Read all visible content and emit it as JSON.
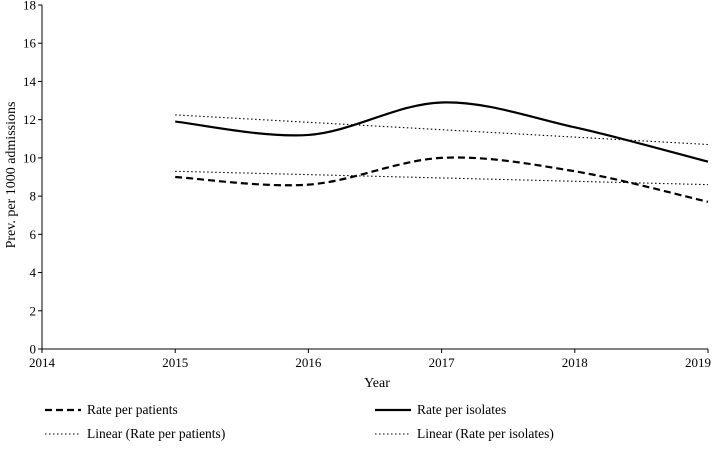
{
  "chart_data": {
    "type": "line",
    "title": "",
    "xlabel": "Year",
    "ylabel": "Prev. per 1000 admissions",
    "xlim": [
      2014,
      2019
    ],
    "ylim": [
      0,
      18
    ],
    "x_ticks": [
      2014,
      2015,
      2016,
      2017,
      2018,
      2019
    ],
    "y_ticks": [
      0,
      2,
      4,
      6,
      8,
      10,
      12,
      14,
      16,
      18
    ],
    "grid": false,
    "legend_position": "bottom",
    "x": [
      2015,
      2016,
      2017,
      2018,
      2019
    ],
    "series": [
      {
        "name": "Rate per patients",
        "style": "dashed",
        "color": "#000000",
        "values": [
          9.0,
          8.6,
          10.0,
          9.3,
          7.7
        ]
      },
      {
        "name": "Rate per isolates",
        "style": "solid",
        "color": "#000000",
        "values": [
          11.9,
          11.2,
          12.9,
          11.6,
          9.8
        ]
      },
      {
        "name": "Linear (Rate per patients)",
        "style": "dotted",
        "color": "#000000",
        "trend_of": "Rate per patients",
        "values": [
          9.3,
          9.13,
          8.95,
          8.78,
          8.6
        ]
      },
      {
        "name": "Linear (Rate per isolates)",
        "style": "dotted",
        "color": "#000000",
        "trend_of": "Rate per isolates",
        "values": [
          12.25,
          11.86,
          11.48,
          11.09,
          10.7
        ]
      }
    ]
  }
}
